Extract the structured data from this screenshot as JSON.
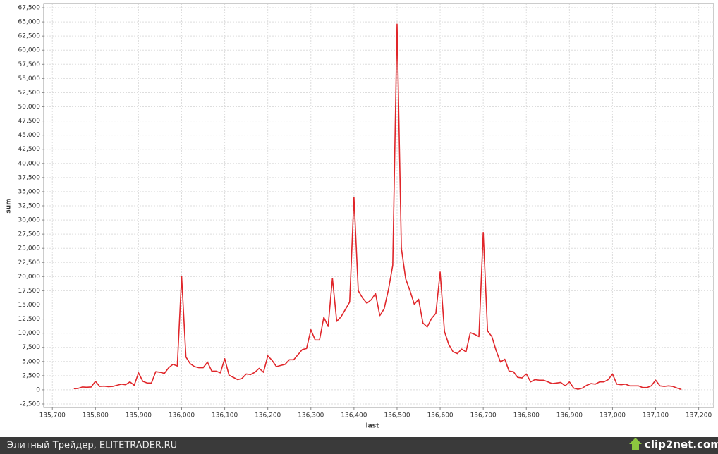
{
  "chart_data": {
    "type": "line",
    "x_label": "last",
    "y_label": "sum",
    "color": "#e0262a",
    "grid": true,
    "xlim": [
      135680,
      137235
    ],
    "ylim": [
      -3125,
      68250
    ],
    "xticks": [
      {
        "value": 135700,
        "label": "135,700"
      },
      {
        "value": 135800,
        "label": "135,800"
      },
      {
        "value": 135900,
        "label": "135,900"
      },
      {
        "value": 136000,
        "label": "136,000"
      },
      {
        "value": 136100,
        "label": "136,100"
      },
      {
        "value": 136200,
        "label": "136,200"
      },
      {
        "value": 136300,
        "label": "136,300"
      },
      {
        "value": 136400,
        "label": "136,400"
      },
      {
        "value": 136500,
        "label": "136,500"
      },
      {
        "value": 136600,
        "label": "136,600"
      },
      {
        "value": 136700,
        "label": "136,700"
      },
      {
        "value": 136800,
        "label": "136,800"
      },
      {
        "value": 136900,
        "label": "136,900"
      },
      {
        "value": 137000,
        "label": "137,000"
      },
      {
        "value": 137100,
        "label": "137,100"
      },
      {
        "value": 137200,
        "label": "137,200"
      }
    ],
    "yticks": [
      {
        "value": -2500,
        "label": "-2,500"
      },
      0,
      {
        "value": 2500,
        "label": "2,500"
      },
      {
        "value": 5000,
        "label": "5,000"
      },
      {
        "value": 7500,
        "label": "7,500"
      },
      {
        "value": 10000,
        "label": "10,000"
      },
      {
        "value": 12500,
        "label": "12,500"
      },
      {
        "value": 15000,
        "label": "15,000"
      },
      {
        "value": 17500,
        "label": "17,500"
      },
      {
        "value": 20000,
        "label": "20,000"
      },
      {
        "value": 22500,
        "label": "22,500"
      },
      {
        "value": 25000,
        "label": "25,000"
      },
      {
        "value": 27500,
        "label": "27,500"
      },
      {
        "value": 30000,
        "label": "30,000"
      },
      {
        "value": 32500,
        "label": "32,500"
      },
      {
        "value": 35000,
        "label": "35,000"
      },
      {
        "value": 37500,
        "label": "37,500"
      },
      {
        "value": 40000,
        "label": "40,000"
      },
      {
        "value": 42500,
        "label": "42,500"
      },
      {
        "value": 45000,
        "label": "45,000"
      },
      {
        "value": 47500,
        "label": "47,500"
      },
      {
        "value": 50000,
        "label": "50,000"
      },
      {
        "value": 52500,
        "label": "52,500"
      },
      {
        "value": 55000,
        "label": "55,000"
      },
      {
        "value": 57500,
        "label": "57,500"
      },
      {
        "value": 60000,
        "label": "60,000"
      },
      {
        "value": 62500,
        "label": "62,500"
      },
      {
        "value": 65000,
        "label": "65,000"
      },
      {
        "value": 67500,
        "label": "67,500"
      }
    ],
    "x": [
      135750,
      135760,
      135770,
      135780,
      135790,
      135800,
      135810,
      135820,
      135830,
      135840,
      135850,
      135860,
      135870,
      135880,
      135890,
      135900,
      135910,
      135920,
      135930,
      135940,
      135950,
      135960,
      135970,
      135980,
      135990,
      136000,
      136010,
      136020,
      136030,
      136040,
      136050,
      136060,
      136070,
      136080,
      136090,
      136100,
      136110,
      136120,
      136130,
      136140,
      136150,
      136160,
      136170,
      136180,
      136190,
      136200,
      136210,
      136220,
      136230,
      136240,
      136250,
      136260,
      136270,
      136280,
      136290,
      136300,
      136310,
      136320,
      136330,
      136340,
      136350,
      136360,
      136370,
      136380,
      136390,
      136400,
      136410,
      136420,
      136430,
      136440,
      136450,
      136460,
      136470,
      136480,
      136490,
      136500,
      136510,
      136520,
      136530,
      136540,
      136550,
      136560,
      136570,
      136580,
      136590,
      136600,
      136610,
      136620,
      136630,
      136640,
      136650,
      136660,
      136670,
      136680,
      136690,
      136700,
      136710,
      136720,
      136730,
      136740,
      136750,
      136760,
      136770,
      136780,
      136790,
      136800,
      136810,
      136820,
      136830,
      136840,
      136850,
      136860,
      136870,
      136880,
      136890,
      136900,
      136910,
      136920,
      136930,
      136940,
      136950,
      136960,
      136970,
      136980,
      136990,
      137000,
      137010,
      137020,
      137030,
      137040,
      137050,
      137060,
      137070,
      137080,
      137090,
      137100,
      137110,
      137120,
      137130,
      137140,
      137150,
      137160
    ],
    "values": [
      200,
      250,
      500,
      450,
      500,
      1500,
      600,
      650,
      550,
      600,
      800,
      1000,
      900,
      1400,
      800,
      3000,
      1500,
      1200,
      1200,
      3200,
      3100,
      2900,
      3900,
      4500,
      4200,
      20000,
      5800,
      4600,
      4100,
      3900,
      3900,
      4900,
      3300,
      3300,
      3000,
      5500,
      2600,
      2200,
      1800,
      2000,
      2800,
      2700,
      3100,
      3800,
      3100,
      6000,
      5200,
      4100,
      4300,
      4500,
      5300,
      5300,
      6200,
      7100,
      7300,
      10600,
      8800,
      8800,
      12800,
      11200,
      19700,
      12100,
      12900,
      14200,
      15500,
      34000,
      17500,
      16200,
      15300,
      15900,
      17000,
      13100,
      14300,
      17700,
      22000,
      64600,
      25000,
      19600,
      17500,
      15100,
      16000,
      11800,
      11100,
      12600,
      13500,
      20800,
      10300,
      8000,
      6700,
      6400,
      7200,
      6700,
      10100,
      9800,
      9400,
      27800,
      10400,
      9400,
      6900,
      4900,
      5400,
      3300,
      3200,
      2200,
      2100,
      2800,
      1400,
      1800,
      1700,
      1700,
      1400,
      1100,
      1200,
      1300,
      700,
      1400,
      300,
      100,
      300,
      800,
      1100,
      1000,
      1400,
      1400,
      1800,
      2800,
      1000,
      900,
      1000,
      700,
      700,
      700,
      400,
      400,
      700,
      1700,
      700,
      600,
      700,
      600,
      300,
      50
    ]
  },
  "footer": {
    "caption": "Элитный Трейдер, ELITETRADER.RU",
    "logo": "clip2net.com"
  }
}
